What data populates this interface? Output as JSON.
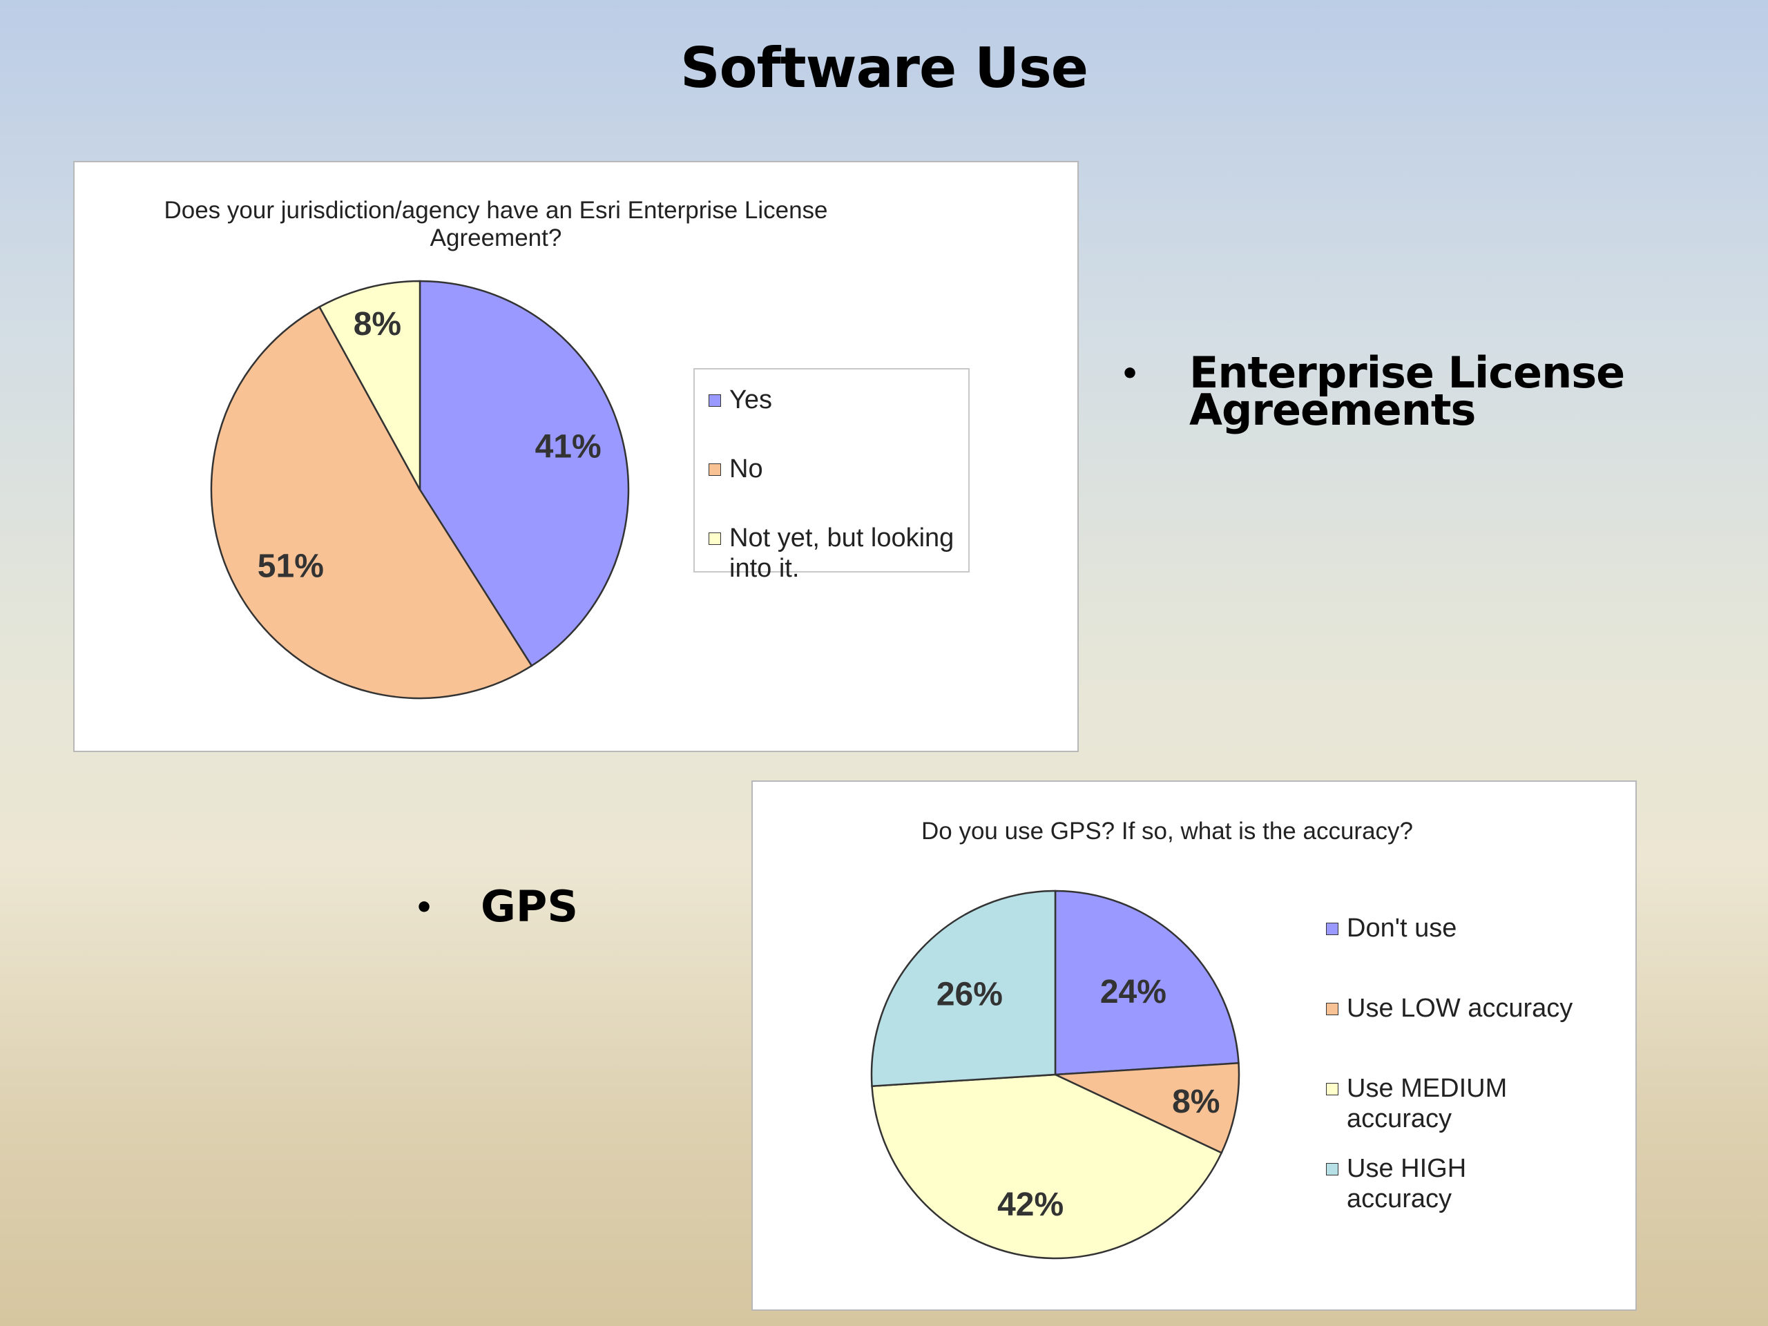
{
  "slide": {
    "title": "Software Use"
  },
  "bullets": [
    {
      "text": "Enterprise License Agreements"
    },
    {
      "text": "GPS"
    }
  ],
  "chart_data": [
    {
      "type": "pie",
      "title": "Does your jurisdiction/agency have an Esri Enterprise License Agreement?",
      "categories": [
        "Yes",
        "No",
        "Not yet, but looking into it."
      ],
      "values": [
        41,
        51,
        8
      ],
      "data_labels": [
        "41%",
        "51%",
        "8%"
      ],
      "colors": [
        "#9999ff",
        "#f9c294",
        "#ffffcc"
      ],
      "start_angle_deg": 0,
      "direction": "clockwise",
      "legend_position": "right"
    },
    {
      "type": "pie",
      "title": "Do you use GPS?  If so, what is the accuracy?",
      "categories": [
        "Don't use",
        "Use LOW accuracy",
        "Use MEDIUM accuracy",
        "Use HIGH accuracy"
      ],
      "values": [
        24,
        8,
        42,
        26
      ],
      "data_labels": [
        "24%",
        "8%",
        "42%",
        "26%"
      ],
      "colors": [
        "#9999ff",
        "#f9c294",
        "#ffffcc",
        "#b7dfe6"
      ],
      "start_angle_deg": 0,
      "direction": "clockwise",
      "legend_position": "right"
    }
  ]
}
